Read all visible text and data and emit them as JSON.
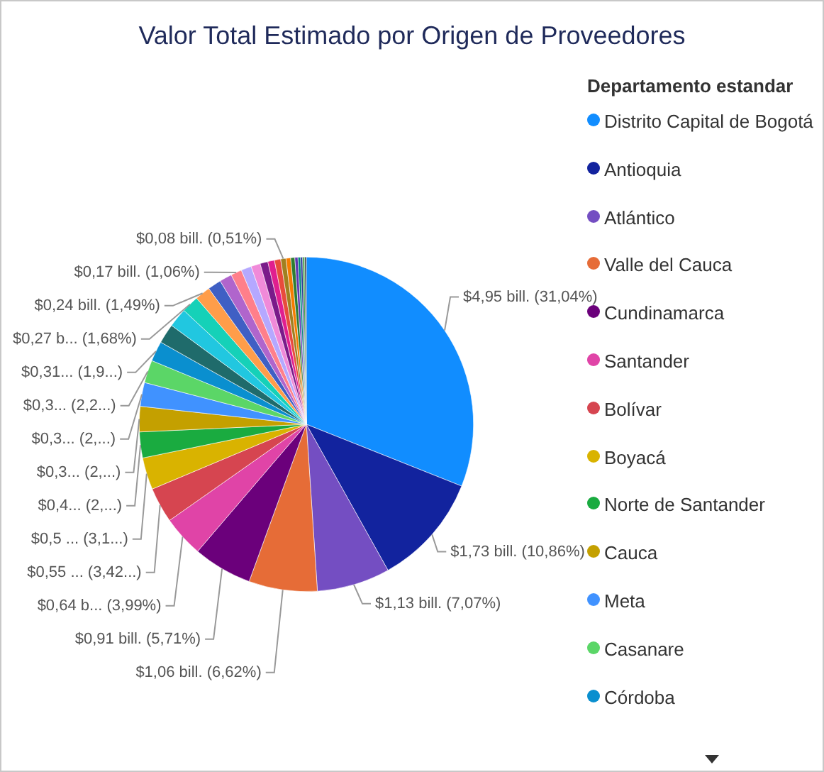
{
  "chart_data": {
    "type": "pie",
    "title": "Valor Total Estimado por Origen de Proveedores",
    "legend_title": "Departamento estandar",
    "legend": "right",
    "categories": [
      "Distrito Capital de Bogotá",
      "Antioquia",
      "Atlántico",
      "Valle del Cauca",
      "Cundinamarca",
      "Santander",
      "Bolívar",
      "Boyacá",
      "Norte de Santander",
      "Cauca",
      "Meta",
      "Casanare",
      "Córdoba",
      null,
      null,
      null,
      null,
      null,
      null,
      null,
      null,
      null,
      null,
      null,
      null,
      null,
      null,
      null,
      null,
      null,
      null,
      null,
      null
    ],
    "values": [
      31.04,
      10.86,
      7.07,
      6.62,
      5.71,
      3.99,
      3.42,
      3.1,
      2.5,
      2.45,
      2.3,
      2.2,
      1.95,
      1.9,
      1.85,
      1.68,
      1.49,
      1.3,
      1.2,
      1.06,
      1.0,
      0.9,
      0.75,
      0.65,
      0.6,
      0.51,
      0.45,
      0.4,
      0.3,
      0.25,
      0.2,
      0.2,
      0.15
    ],
    "colors": [
      "#118dff",
      "#12239e",
      "#744ec2",
      "#e66c37",
      "#6b007b",
      "#e044a7",
      "#d64550",
      "#d9b300",
      "#1aab40",
      "#c4a000",
      "#4092ff",
      "#5bd667",
      "#0a8fcf",
      "#1f6b6b",
      "#21c7e0",
      "#15d1b8",
      "#ff9d4a",
      "#3f5fc4",
      "#b065cc",
      "#ff7f8a",
      "#b5a8ff",
      "#f08ad9",
      "#7a1b8a",
      "#e01f8f",
      "#e84b3c",
      "#a08020",
      "#f57c00",
      "#2e7d32",
      "#5e35b1",
      "#00897b",
      "#283593",
      "#43a047",
      "#333333"
    ],
    "value_labels": [
      "$4,95 bill. (31,04%)",
      "$1,73 bill. (10,86%)",
      "$1,13 bill. (7,07%)",
      "$1,06 bill. (6,62%)",
      "$0,91 bill. (5,71%)",
      "$0,64 b... (3,99%)",
      "$0,55 ... (3,42...)",
      "$0,5 ... (3,1...)",
      "$0,4... (2,...)",
      "$0,3... (2,...)",
      "$0,3... (2,...)",
      "$0,3... (2,2...)",
      "$0,31... (1,9...)",
      null,
      null,
      "$0,27 b... (1,68%)",
      "$0,24 bill. (1,49%)",
      null,
      null,
      "$0,17 bill. (1,06%)",
      null,
      null,
      null,
      null,
      null,
      "$0,08 bill. (0,51%)",
      null,
      null,
      null,
      null,
      null,
      null,
      null
    ]
  }
}
